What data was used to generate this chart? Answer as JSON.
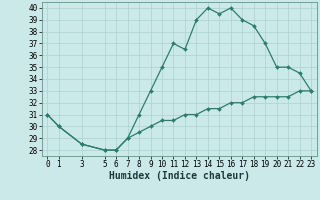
{
  "title": "",
  "xlabel": "Humidex (Indice chaleur)",
  "ylabel": "",
  "background_color": "#cce9e9",
  "line_color": "#2d7d6e",
  "grid_color": "#b0d4d4",
  "x_upper": [
    0,
    1,
    3,
    5,
    6,
    7,
    8,
    9,
    10,
    11,
    12,
    13,
    14,
    15,
    16,
    17,
    18,
    19,
    20,
    21,
    22,
    23
  ],
  "y_upper": [
    31,
    30,
    28.5,
    28,
    28,
    29,
    31,
    33,
    35,
    37,
    36.5,
    39,
    40,
    39.5,
    40,
    39,
    38.5,
    37,
    35,
    35,
    34.5,
    33
  ],
  "x_lower": [
    0,
    1,
    3,
    5,
    6,
    7,
    8,
    9,
    10,
    11,
    12,
    13,
    14,
    15,
    16,
    17,
    18,
    19,
    20,
    21,
    22,
    23
  ],
  "y_lower": [
    31,
    30,
    28.5,
    28,
    28,
    29,
    29.5,
    30,
    30.5,
    30.5,
    31,
    31,
    31.5,
    31.5,
    32,
    32,
    32.5,
    32.5,
    32.5,
    32.5,
    33,
    33
  ],
  "ylim": [
    27.5,
    40.5
  ],
  "xlim": [
    -0.5,
    23.5
  ],
  "yticks": [
    28,
    29,
    30,
    31,
    32,
    33,
    34,
    35,
    36,
    37,
    38,
    39,
    40
  ],
  "xticks": [
    0,
    1,
    3,
    5,
    6,
    7,
    8,
    9,
    10,
    11,
    12,
    13,
    14,
    15,
    16,
    17,
    18,
    19,
    20,
    21,
    22,
    23
  ],
  "marker": "D",
  "markersize": 2.0,
  "linewidth": 0.9,
  "fontsize_label": 7,
  "fontsize_tick": 5.5
}
